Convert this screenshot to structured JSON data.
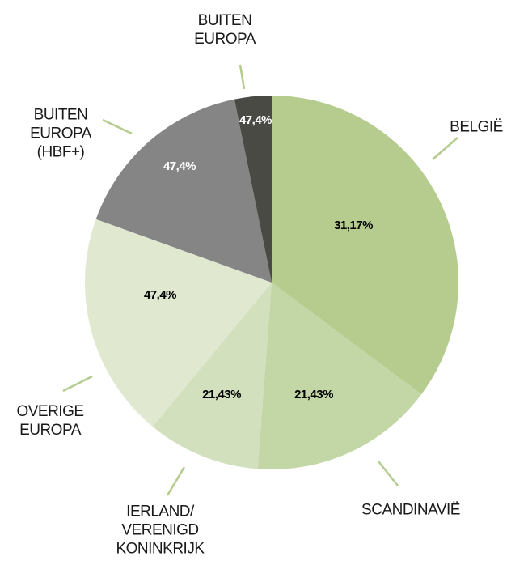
{
  "chart_data": {
    "type": "pie",
    "categories": [
      "BELGIË",
      "SCANDINAVIË",
      "IERLAND/\nVERENIGD\nKONINKRIJK",
      "OVERIGE\nEUROPA",
      "BUITEN\nEUROPA\n(HBF+)",
      "BUITEN\nEUROPA"
    ],
    "values": [
      35.2,
      16.0,
      9.8,
      19.5,
      16.3,
      3.2
    ],
    "colors": [
      "#b5cc8e",
      "#c3d6a5",
      "#d3e0bd",
      "#e0e9d0",
      "#858585",
      "#4a4a45"
    ],
    "annotations": [
      "31,17%",
      "21,43%",
      "21,43%",
      "47,4%",
      "47,4%",
      "47,4%"
    ]
  }
}
